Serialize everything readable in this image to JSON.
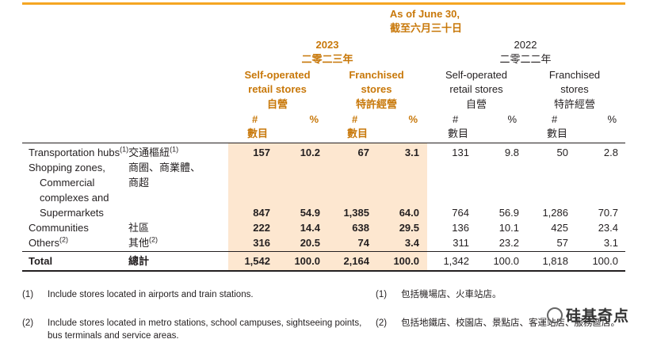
{
  "header": {
    "as_of_en": "As of June 30,",
    "as_of_zh": "截至六月三十日",
    "y2023": "2023",
    "y2023_zh": "二零二三年",
    "y2022": "2022",
    "y2022_zh": "二零二二年",
    "self_l1": "Self-operated",
    "self_l2": "retail stores",
    "self_zh": "自營",
    "fr_l1": "Franchised",
    "fr_l2": "stores",
    "fr_zh": "特許經營",
    "num": "#",
    "num_zh": "數目",
    "pct": "%"
  },
  "rows": [
    {
      "en": "Transportation hubs",
      "en_note": "(1)",
      "zh": "交通樞紐",
      "zh_note": "(1)",
      "v": [
        "157",
        "10.2",
        "67",
        "3.1",
        "131",
        "9.8",
        "50",
        "2.8"
      ]
    },
    {
      "en_l1": "Shopping zones,",
      "en_l2": "Commercial",
      "en_l3": "complexes and",
      "en_l4": "Supermarkets",
      "zh_l1": "商圈、商業體、",
      "zh_l2": "商超",
      "v": [
        "847",
        "54.9",
        "1,385",
        "64.0",
        "764",
        "56.9",
        "1,286",
        "70.7"
      ]
    },
    {
      "en": "Communities",
      "zh": "社區",
      "v": [
        "222",
        "14.4",
        "638",
        "29.5",
        "136",
        "10.1",
        "425",
        "23.4"
      ]
    },
    {
      "en": "Others",
      "en_note": "(2)",
      "zh": "其他",
      "zh_note": "(2)",
      "v": [
        "316",
        "20.5",
        "74",
        "3.4",
        "311",
        "23.2",
        "57",
        "3.1"
      ]
    }
  ],
  "total": {
    "en": "Total",
    "zh": "總計",
    "v": [
      "1,542",
      "100.0",
      "2,164",
      "100.0",
      "1,342",
      "100.0",
      "1,818",
      "100.0"
    ]
  },
  "footnotes": {
    "n1_mark": "(1)",
    "n1_en": "Include stores located in airports and train stations.",
    "n1_zh": "包括機場店、火車站店。",
    "n2_mark": "(2)",
    "n2_en_l1": "Include stores located in metro stations, school campuses, sightseeing points,",
    "n2_en_l2": "bus terminals and service areas.",
    "n2_zh": "包括地鐵店、校園店、景點店、客運站店、服務區店。"
  },
  "watermark": "硅基奇点",
  "colors": {
    "accent": "#f5a623",
    "orange_text": "#c8780a",
    "highlight": "#fde7d0"
  }
}
